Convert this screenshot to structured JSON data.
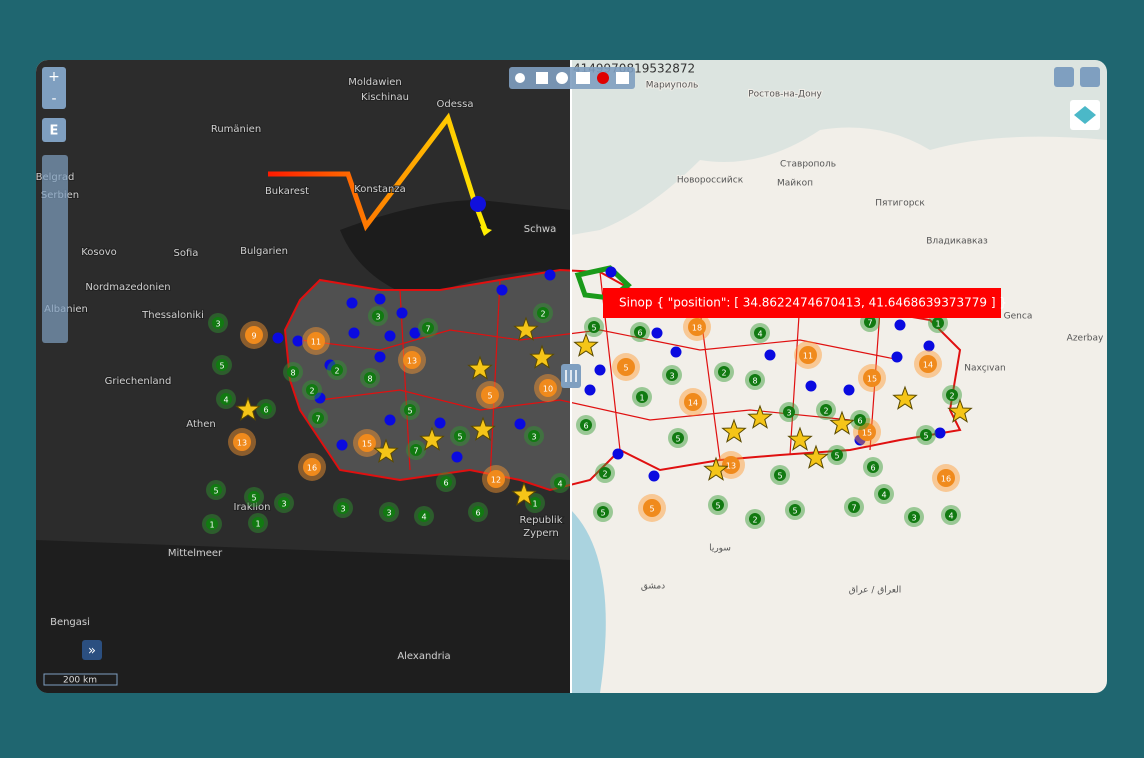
{
  "map": {
    "controls": {
      "zoom_in": "+",
      "zoom_out": "-",
      "edit": "E",
      "expand": "»"
    },
    "coordinate": "4149970819532872",
    "tooltip": "Sinop { \"position\": [ 34.8622474670413, 41.6468639373779 ] }",
    "scale": "200 km",
    "places": [
      "Moldawien",
      "Kischinau",
      "Odessa",
      "Rumänien",
      "Bukarest",
      "Konstanza",
      "Belgrad",
      "Serbien",
      "Kosovo",
      "Sofia",
      "Bulgarien",
      "Nordmazedonien",
      "Albanien",
      "Thessaloniki",
      "Griechenland",
      "Athen",
      "Iraklion",
      "Mittelmeer",
      "Republik",
      "Zypern",
      "Bengasi",
      "Alexandria",
      "Schwa",
      "Мариуполь",
      "Ростов-на-Дону",
      "Ставрополь",
      "Новороссийск",
      "Майкоп",
      "Пятигорск",
      "Владикавказ",
      "Genca",
      "Azerbay",
      "Naxçıvan",
      "سوريا",
      "العراق / عراق",
      "دمشق"
    ],
    "clusters_green": [
      "3",
      "5",
      "4",
      "6",
      "8",
      "2",
      "7",
      "2",
      "8",
      "3",
      "7",
      "5",
      "5",
      "7",
      "6",
      "3",
      "2",
      "5",
      "5",
      "3",
      "3",
      "3",
      "4",
      "6",
      "1",
      "1",
      "1",
      "4",
      "5",
      "6",
      "4",
      "3",
      "2",
      "8",
      "1",
      "6",
      "5",
      "3",
      "2",
      "6",
      "5",
      "2",
      "5",
      "6",
      "4",
      "2",
      "5",
      "5",
      "5",
      "2",
      "5",
      "7",
      "3",
      "4",
      "1",
      "7"
    ],
    "clusters_orange": [
      "9",
      "11",
      "13",
      "15",
      "13",
      "16",
      "5",
      "12",
      "10",
      "18",
      "11",
      "5",
      "14",
      "13",
      "15",
      "14",
      "15",
      "16",
      "5"
    ]
  }
}
